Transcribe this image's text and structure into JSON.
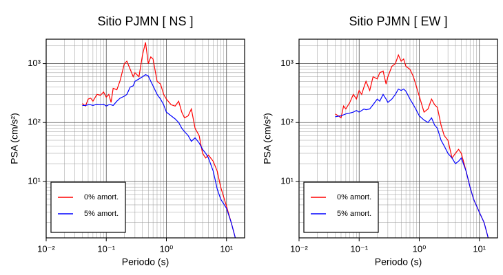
{
  "chart_data": [
    {
      "type": "line",
      "title": "Sitio PJMN [ NS ]",
      "xlabel": "Periodo (s)",
      "ylabel": "PSA (cm/s²)",
      "xscale": "log",
      "yscale": "log",
      "grid": true,
      "legend": "lower left",
      "xlim": [
        0.01,
        20
      ],
      "ylim": [
        1.1,
        2600
      ],
      "xticks": [
        {
          "value": 0.01,
          "label": "10⁻²"
        },
        {
          "value": 0.1,
          "label": "10⁻¹"
        },
        {
          "value": 1,
          "label": "10⁰"
        },
        {
          "value": 10,
          "label": "10¹"
        }
      ],
      "yticks": [
        {
          "value": 10,
          "label": "10¹"
        },
        {
          "value": 100,
          "label": "10²"
        },
        {
          "value": 1000,
          "label": "10³"
        }
      ],
      "xminorticks": [
        0.02,
        0.03,
        0.04,
        0.05,
        0.06,
        0.07,
        0.08,
        0.09,
        0.2,
        0.3,
        0.4,
        0.5,
        0.6,
        0.7,
        0.8,
        0.9,
        2,
        3,
        4,
        5,
        6,
        7,
        8,
        9
      ],
      "yminorticks": [
        2,
        3,
        4,
        5,
        6,
        7,
        8,
        9,
        20,
        30,
        40,
        50,
        60,
        70,
        80,
        90,
        200,
        300,
        400,
        500,
        600,
        700,
        800,
        900,
        2000
      ],
      "x": [
        0.04,
        0.045,
        0.05,
        0.055,
        0.06,
        0.07,
        0.08,
        0.09,
        0.1,
        0.11,
        0.12,
        0.13,
        0.15,
        0.17,
        0.2,
        0.22,
        0.25,
        0.28,
        0.3,
        0.35,
        0.4,
        0.45,
        0.5,
        0.55,
        0.6,
        0.7,
        0.8,
        0.9,
        1.0,
        1.2,
        1.4,
        1.6,
        1.8,
        2.0,
        2.3,
        2.6,
        3.0,
        3.5,
        4.0,
        4.5,
        5.0,
        6.0,
        7.0,
        8.0,
        10,
        12,
        14
      ],
      "series": [
        {
          "name": "0% amort.",
          "color": "#ff0000",
          "values": [
            210,
            190,
            250,
            260,
            230,
            300,
            290,
            330,
            270,
            300,
            220,
            380,
            360,
            520,
            1000,
            1100,
            800,
            600,
            700,
            600,
            1400,
            2300,
            1000,
            1300,
            1200,
            500,
            450,
            300,
            250,
            200,
            190,
            230,
            150,
            120,
            130,
            170,
            80,
            60,
            30,
            25,
            28,
            22,
            15,
            8,
            3.8,
            2,
            1.1
          ]
        },
        {
          "name": "5% amort.",
          "color": "#0000ff",
          "values": [
            195,
            195,
            200,
            200,
            195,
            205,
            200,
            205,
            190,
            200,
            200,
            195,
            230,
            260,
            280,
            300,
            400,
            420,
            500,
            550,
            600,
            650,
            620,
            500,
            420,
            300,
            250,
            200,
            150,
            130,
            115,
            100,
            80,
            70,
            60,
            48,
            55,
            45,
            35,
            30,
            25,
            15,
            7.5,
            5,
            3.5,
            2,
            1.1
          ]
        }
      ]
    },
    {
      "type": "line",
      "title": "Sitio PJMN [ EW ]",
      "xlabel": "Periodo (s)",
      "ylabel": "PSA (cm/s²)",
      "xscale": "log",
      "yscale": "log",
      "grid": true,
      "legend": "lower left",
      "xlim": [
        0.01,
        20
      ],
      "ylim": [
        1.1,
        2600
      ],
      "xticks": [
        {
          "value": 0.01,
          "label": "10⁻²"
        },
        {
          "value": 0.1,
          "label": "10⁻¹"
        },
        {
          "value": 1,
          "label": "10⁰"
        },
        {
          "value": 10,
          "label": "10¹"
        }
      ],
      "yticks": [
        {
          "value": 10,
          "label": "10¹"
        },
        {
          "value": 100,
          "label": "10²"
        },
        {
          "value": 1000,
          "label": "10³"
        }
      ],
      "xminorticks": [
        0.02,
        0.03,
        0.04,
        0.05,
        0.06,
        0.07,
        0.08,
        0.09,
        0.2,
        0.3,
        0.4,
        0.5,
        0.6,
        0.7,
        0.8,
        0.9,
        2,
        3,
        4,
        5,
        6,
        7,
        8,
        9
      ],
      "yminorticks": [
        2,
        3,
        4,
        5,
        6,
        7,
        8,
        9,
        20,
        30,
        40,
        50,
        60,
        70,
        80,
        90,
        200,
        300,
        400,
        500,
        600,
        700,
        800,
        900,
        2000
      ],
      "x": [
        0.04,
        0.045,
        0.05,
        0.055,
        0.06,
        0.07,
        0.08,
        0.09,
        0.1,
        0.11,
        0.12,
        0.13,
        0.15,
        0.17,
        0.2,
        0.22,
        0.25,
        0.28,
        0.3,
        0.35,
        0.4,
        0.45,
        0.5,
        0.55,
        0.6,
        0.7,
        0.8,
        0.9,
        1.0,
        1.2,
        1.4,
        1.6,
        1.8,
        2.0,
        2.3,
        2.6,
        3.0,
        3.5,
        4.0,
        4.5,
        5.0,
        6.0,
        7.0,
        8.0,
        10,
        12,
        14
      ],
      "series": [
        {
          "name": "0% amort.",
          "color": "#ff0000",
          "values": [
            140,
            130,
            120,
            190,
            170,
            220,
            300,
            250,
            350,
            300,
            400,
            500,
            350,
            600,
            550,
            700,
            750,
            450,
            600,
            900,
            1000,
            1400,
            1100,
            1200,
            900,
            800,
            600,
            400,
            280,
            150,
            170,
            250,
            200,
            180,
            90,
            60,
            50,
            25,
            30,
            35,
            30,
            15,
            8,
            5,
            3,
            2,
            1.1
          ]
        },
        {
          "name": "5% amort.",
          "color": "#0000ff",
          "values": [
            125,
            128,
            130,
            135,
            140,
            145,
            150,
            160,
            150,
            160,
            170,
            165,
            170,
            200,
            250,
            230,
            300,
            250,
            220,
            250,
            300,
            370,
            350,
            370,
            340,
            250,
            200,
            160,
            130,
            110,
            100,
            120,
            90,
            80,
            50,
            40,
            30,
            25,
            20,
            22,
            25,
            15,
            8,
            5,
            3,
            2,
            1.1
          ]
        }
      ]
    }
  ]
}
